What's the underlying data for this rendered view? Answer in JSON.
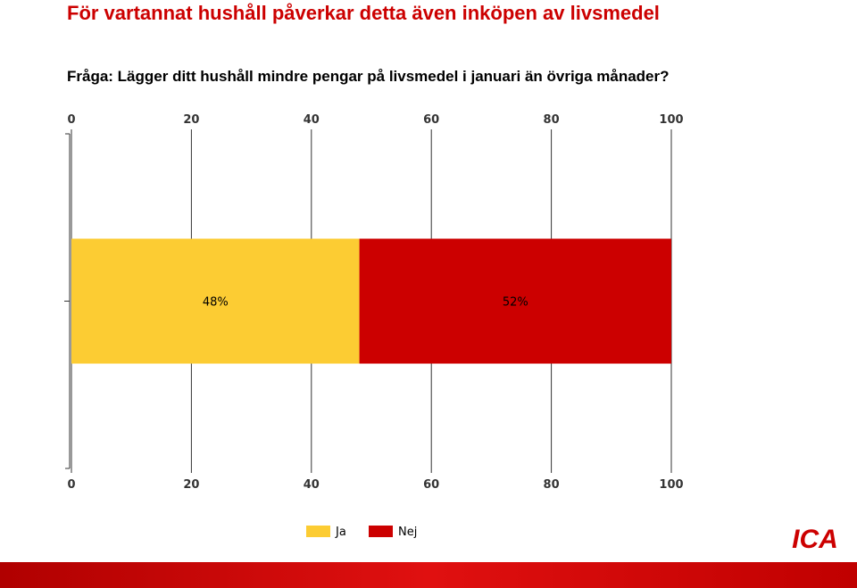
{
  "chart_data": {
    "type": "stacked-bar",
    "orientation": "horizontal",
    "title": "För vartannat hushåll påverkar detta även inköpen av livsmedel",
    "subtitle": "Fråga: Lägger ditt hushåll mindre pengar på livsmedel i januari än övriga månader?",
    "categories": [
      null
    ],
    "series": [
      {
        "name": "Ja",
        "color": "#fccc33",
        "values": [
          48
        ],
        "value_labels": [
          "48%"
        ]
      },
      {
        "name": "Nej",
        "color": "#cc0000",
        "values": [
          52
        ],
        "value_labels": [
          "52%"
        ]
      }
    ],
    "xlim": [
      0,
      100
    ],
    "xticks": [
      0,
      20,
      40,
      60,
      80,
      100
    ],
    "grid": true,
    "legend": "bottom",
    "logo": "ICA"
  }
}
